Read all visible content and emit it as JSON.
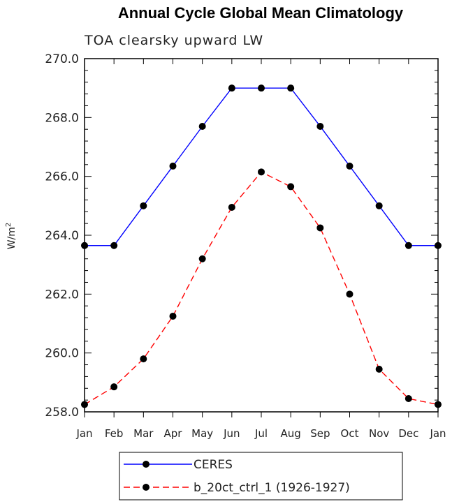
{
  "chart_data": {
    "type": "line",
    "title": "Annual Cycle Global Mean Climatology",
    "subtitle": "TOA clearsky upward LW",
    "xlabel": "",
    "ylabel_base": "W/m",
    "ylabel_sup": "2",
    "categories": [
      "Jan",
      "Feb",
      "Mar",
      "Apr",
      "May",
      "Jun",
      "Jul",
      "Aug",
      "Sep",
      "Oct",
      "Nov",
      "Dec",
      "Jan"
    ],
    "ylim": [
      258.0,
      270.0
    ],
    "yticks": [
      258.0,
      260.0,
      262.0,
      264.0,
      266.0,
      268.0,
      270.0
    ],
    "ytick_labels": [
      "258.0",
      "260.0",
      "262.0",
      "264.0",
      "266.0",
      "268.0",
      "270.0"
    ],
    "grid": false,
    "legend_position": "bottom",
    "series": [
      {
        "name": "CERES",
        "color": "#0000ff",
        "dash": "solid",
        "values": [
          263.65,
          263.65,
          265.0,
          266.35,
          267.7,
          269.0,
          269.0,
          269.0,
          267.7,
          266.35,
          265.0,
          263.65,
          263.65
        ]
      },
      {
        "name": "b_20ct_ctrl_1 (1926-1927)",
        "color": "#ff0000",
        "dash": "dashed",
        "values": [
          258.25,
          258.85,
          259.8,
          261.25,
          263.2,
          264.95,
          266.15,
          265.65,
          264.25,
          262.0,
          259.45,
          258.45,
          258.25
        ]
      }
    ]
  }
}
